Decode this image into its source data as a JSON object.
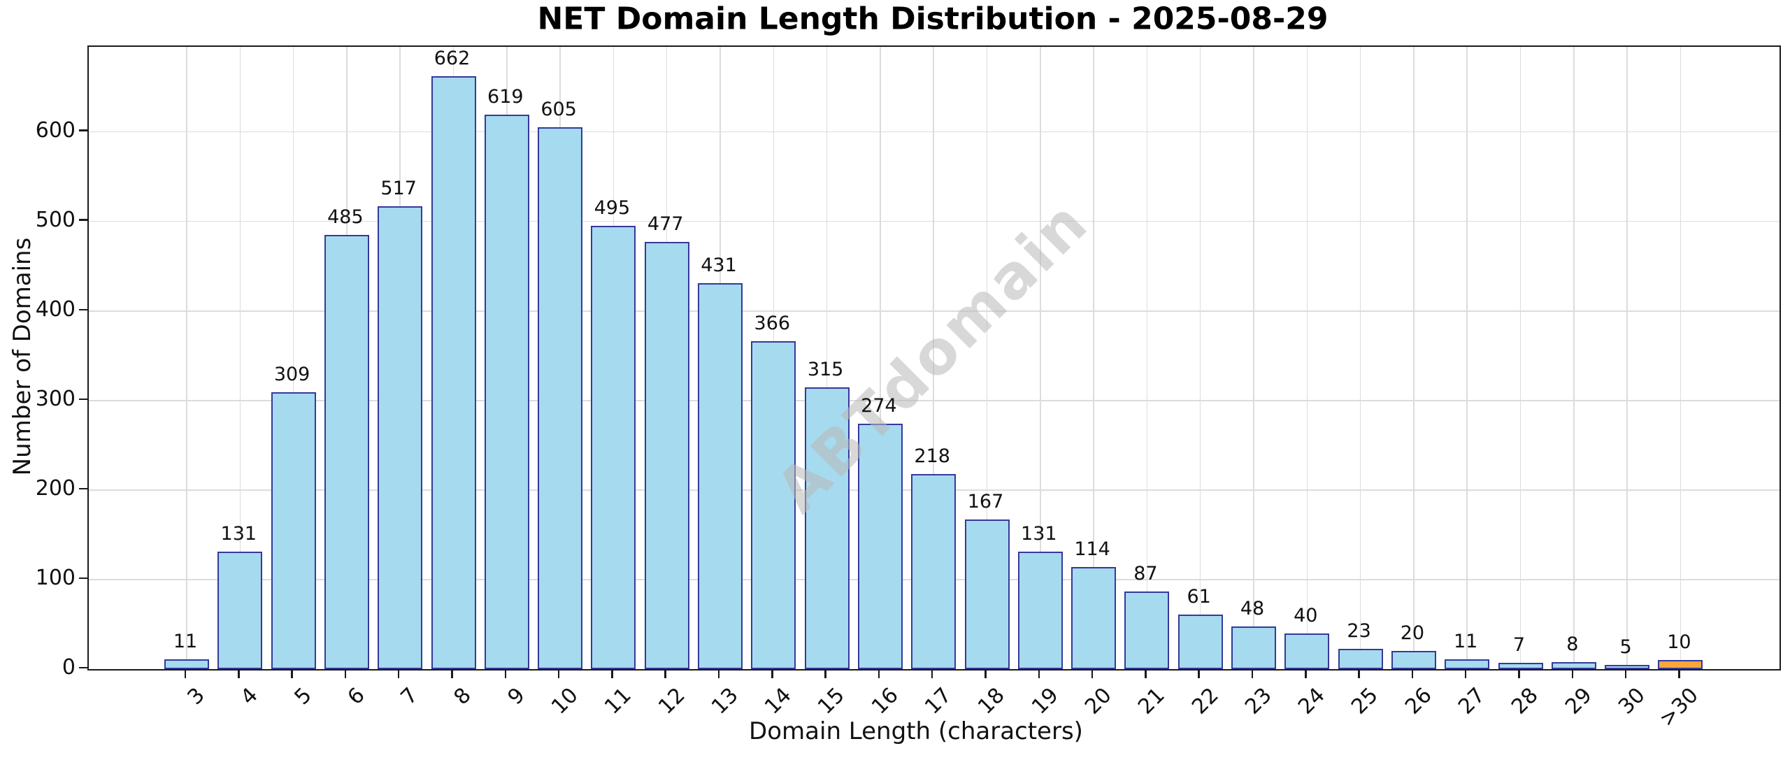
{
  "title": "NET Domain Length Distribution - 2025-08-29",
  "watermark": "ABTdomain",
  "chart_data": {
    "type": "bar",
    "title": "NET Domain Length Distribution - 2025-08-29",
    "xlabel": "Domain Length (characters)",
    "ylabel": "Number of Domains",
    "categories": [
      "3",
      "4",
      "5",
      "6",
      "7",
      "8",
      "9",
      "10",
      "11",
      "12",
      "13",
      "14",
      "15",
      "16",
      "17",
      "18",
      "19",
      "20",
      "21",
      "22",
      "23",
      "24",
      "25",
      "26",
      "27",
      "28",
      "29",
      "30",
      ">30"
    ],
    "values": [
      11,
      131,
      309,
      485,
      517,
      662,
      619,
      605,
      495,
      477,
      431,
      366,
      315,
      274,
      218,
      167,
      131,
      114,
      87,
      61,
      48,
      40,
      23,
      20,
      11,
      7,
      8,
      5,
      10
    ],
    "value_labels_shown": true,
    "yticks": [
      0,
      100,
      200,
      300,
      400,
      500,
      600
    ],
    "ylim": [
      0,
      695
    ],
    "grid": true,
    "legend": "none",
    "bar_fill_color": "#a6daee",
    "bar_edge_color": "#35399b",
    "highlight_category": ">30",
    "highlight_fill_color": "#f8a63d",
    "watermark_text": "ABTdomain"
  }
}
